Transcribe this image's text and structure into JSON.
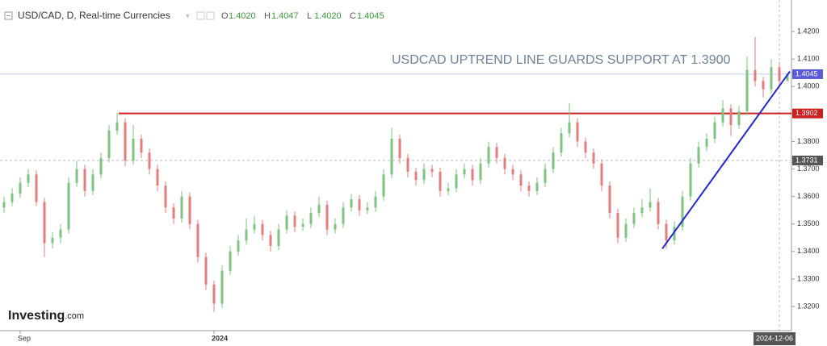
{
  "chart_data": {
    "type": "candlestick",
    "title": "USD/CAD, D, Real-time Currencies",
    "ohlc_header": [
      {
        "key": "O",
        "value": "1.4020"
      },
      {
        "key": "H",
        "value": "1.4047"
      },
      {
        "key": "L",
        "value": "1.4020"
      },
      {
        "key": "C",
        "value": "1.4045"
      }
    ],
    "annotation": "USDCAD UPTREND LINE  GUARDS SUPPORT AT 1.3900",
    "logo": "Investing",
    "logo_suffix": ".com",
    "up_color": "#7cc47f",
    "down_color": "#e57c7c",
    "ylim": [
      1.3112,
      1.43
    ],
    "yticks": [
      {
        "value": 1.32,
        "label": "1.3200"
      },
      {
        "value": 1.33,
        "label": "1.3300"
      },
      {
        "value": 1.34,
        "label": "1.3400"
      },
      {
        "value": 1.35,
        "label": "1.3500"
      },
      {
        "value": 1.36,
        "label": "1.3600"
      },
      {
        "value": 1.37,
        "label": "1.3700"
      },
      {
        "value": 1.38,
        "label": "1.3800"
      },
      {
        "value": 1.39,
        "label": "1.3900"
      },
      {
        "value": 1.4,
        "label": "1.4000"
      },
      {
        "value": 1.41,
        "label": "1.4100"
      },
      {
        "value": 1.42,
        "label": "1.4200"
      }
    ],
    "categories": [
      null,
      null,
      "Sep",
      null,
      null,
      null,
      null,
      null,
      null,
      null,
      null,
      null,
      null,
      null,
      null,
      null,
      null,
      null,
      null,
      null,
      null,
      null,
      null,
      null,
      null,
      null,
      "2024",
      null,
      null,
      null,
      null,
      null,
      null,
      null,
      null,
      null,
      null,
      null,
      null,
      null,
      null,
      null,
      null,
      null,
      null,
      null,
      null,
      null,
      null,
      null,
      null,
      null,
      null,
      null,
      null,
      null,
      null,
      null,
      null,
      null,
      null,
      null,
      null,
      null,
      null,
      null,
      null,
      null,
      null,
      null,
      null,
      null,
      null,
      null,
      null,
      null,
      null,
      null,
      null,
      null,
      null,
      null,
      null,
      null,
      null,
      null,
      null,
      null,
      null,
      null,
      null,
      null,
      null,
      null,
      null,
      null,
      "2024-12-06",
      null
    ],
    "candles": [
      [
        1.356,
        1.36,
        1.354,
        1.358
      ],
      [
        1.358,
        1.363,
        1.3565,
        1.361
      ],
      [
        1.361,
        1.367,
        1.3595,
        1.365
      ],
      [
        1.365,
        1.37,
        1.3635,
        1.368
      ],
      [
        1.368,
        1.3695,
        1.3565,
        1.358
      ],
      [
        1.358,
        1.3595,
        1.338,
        1.343
      ],
      [
        1.343,
        1.347,
        1.341,
        1.345
      ],
      [
        1.345,
        1.35,
        1.343,
        1.348
      ],
      [
        1.348,
        1.367,
        1.3465,
        1.365
      ],
      [
        1.365,
        1.373,
        1.3635,
        1.37
      ],
      [
        1.37,
        1.3715,
        1.36,
        1.362
      ],
      [
        1.362,
        1.37,
        1.3605,
        1.368
      ],
      [
        1.368,
        1.376,
        1.3665,
        1.374
      ],
      [
        1.374,
        1.386,
        1.3725,
        1.384
      ],
      [
        1.384,
        1.3905,
        1.3825,
        1.387
      ],
      [
        1.387,
        1.3885,
        1.371,
        1.373
      ],
      [
        1.373,
        1.386,
        1.3715,
        1.381
      ],
      [
        1.381,
        1.3825,
        1.374,
        1.376
      ],
      [
        1.376,
        1.3775,
        1.368,
        1.37
      ],
      [
        1.37,
        1.3715,
        1.362,
        1.364
      ],
      [
        1.364,
        1.3655,
        1.354,
        1.356
      ],
      [
        1.356,
        1.3575,
        1.35,
        1.352
      ],
      [
        1.352,
        1.362,
        1.3505,
        1.36
      ],
      [
        1.36,
        1.3615,
        1.348,
        1.35
      ],
      [
        1.35,
        1.3515,
        1.336,
        1.338
      ],
      [
        1.338,
        1.3395,
        1.326,
        1.328
      ],
      [
        1.328,
        1.3295,
        1.318,
        1.321
      ],
      [
        1.321,
        1.335,
        1.3195,
        1.333
      ],
      [
        1.333,
        1.342,
        1.3315,
        1.34
      ],
      [
        1.34,
        1.346,
        1.3385,
        1.344
      ],
      [
        1.344,
        1.352,
        1.3425,
        1.348
      ],
      [
        1.348,
        1.353,
        1.3465,
        1.35
      ],
      [
        1.35,
        1.3515,
        1.344,
        1.346
      ],
      [
        1.346,
        1.3475,
        1.34,
        1.342
      ],
      [
        1.342,
        1.35,
        1.3405,
        1.348
      ],
      [
        1.348,
        1.355,
        1.3465,
        1.353
      ],
      [
        1.353,
        1.3545,
        1.347,
        1.349
      ],
      [
        1.349,
        1.352,
        1.3475,
        1.35
      ],
      [
        1.35,
        1.356,
        1.3485,
        1.354
      ],
      [
        1.354,
        1.36,
        1.3525,
        1.357
      ],
      [
        1.357,
        1.3585,
        1.346,
        1.348
      ],
      [
        1.348,
        1.352,
        1.3465,
        1.35
      ],
      [
        1.35,
        1.358,
        1.3485,
        1.356
      ],
      [
        1.356,
        1.361,
        1.3545,
        1.359
      ],
      [
        1.359,
        1.3605,
        1.353,
        1.355
      ],
      [
        1.355,
        1.358,
        1.3535,
        1.356
      ],
      [
        1.356,
        1.362,
        1.3545,
        1.36
      ],
      [
        1.36,
        1.37,
        1.3585,
        1.368
      ],
      [
        1.368,
        1.385,
        1.3665,
        1.381
      ],
      [
        1.381,
        1.3825,
        1.372,
        1.374
      ],
      [
        1.374,
        1.3755,
        1.367,
        1.369
      ],
      [
        1.369,
        1.3705,
        1.364,
        1.366
      ],
      [
        1.366,
        1.372,
        1.3645,
        1.37
      ],
      [
        1.37,
        1.3715,
        1.367,
        1.369
      ],
      [
        1.369,
        1.3705,
        1.36,
        1.362
      ],
      [
        1.362,
        1.365,
        1.3605,
        1.363
      ],
      [
        1.363,
        1.37,
        1.3615,
        1.368
      ],
      [
        1.368,
        1.372,
        1.3665,
        1.37
      ],
      [
        1.37,
        1.3715,
        1.364,
        1.366
      ],
      [
        1.366,
        1.374,
        1.3645,
        1.372
      ],
      [
        1.372,
        1.38,
        1.3705,
        1.378
      ],
      [
        1.378,
        1.3795,
        1.372,
        1.374
      ],
      [
        1.374,
        1.3755,
        1.368,
        1.37
      ],
      [
        1.37,
        1.3715,
        1.366,
        1.368
      ],
      [
        1.368,
        1.3695,
        1.362,
        1.364
      ],
      [
        1.364,
        1.3655,
        1.36,
        1.362
      ],
      [
        1.362,
        1.367,
        1.3605,
        1.365
      ],
      [
        1.365,
        1.372,
        1.3635,
        1.37
      ],
      [
        1.37,
        1.378,
        1.3685,
        1.376
      ],
      [
        1.376,
        1.385,
        1.3745,
        1.383
      ],
      [
        1.383,
        1.394,
        1.3815,
        1.387
      ],
      [
        1.387,
        1.3885,
        1.378,
        1.38
      ],
      [
        1.38,
        1.3815,
        1.374,
        1.376
      ],
      [
        1.376,
        1.3775,
        1.37,
        1.372
      ],
      [
        1.372,
        1.3735,
        1.362,
        1.364
      ],
      [
        1.364,
        1.3655,
        1.352,
        1.354
      ],
      [
        1.354,
        1.3555,
        1.343,
        1.345
      ],
      [
        1.345,
        1.352,
        1.3435,
        1.35
      ],
      [
        1.35,
        1.356,
        1.3485,
        1.354
      ],
      [
        1.354,
        1.359,
        1.3525,
        1.356
      ],
      [
        1.356,
        1.363,
        1.3545,
        1.358
      ],
      [
        1.358,
        1.3595,
        1.348,
        1.35
      ],
      [
        1.35,
        1.3515,
        1.341,
        1.344
      ],
      [
        1.344,
        1.351,
        1.3425,
        1.349
      ],
      [
        1.349,
        1.362,
        1.3475,
        1.36
      ],
      [
        1.36,
        1.374,
        1.3585,
        1.372
      ],
      [
        1.372,
        1.38,
        1.3705,
        1.378
      ],
      [
        1.378,
        1.383,
        1.3765,
        1.381
      ],
      [
        1.381,
        1.389,
        1.3795,
        1.387
      ],
      [
        1.387,
        1.395,
        1.3855,
        1.392
      ],
      [
        1.392,
        1.3935,
        1.382,
        1.386
      ],
      [
        1.386,
        1.393,
        1.3845,
        1.391
      ],
      [
        1.391,
        1.411,
        1.3895,
        1.406
      ],
      [
        1.406,
        1.418,
        1.4,
        1.402
      ],
      [
        1.402,
        1.4035,
        1.396,
        1.399
      ],
      [
        1.399,
        1.41,
        1.3975,
        1.407
      ],
      [
        1.407,
        1.409,
        1.4,
        1.402
      ],
      [
        1.402,
        1.4047,
        1.402,
        1.4045
      ]
    ],
    "levels": [
      {
        "value": 1.4045,
        "label": "1.4045",
        "color": "#5b5bd6",
        "line_color": "#c5cbe6",
        "start": -0.5
      },
      {
        "value": 1.3902,
        "label": "1.3902",
        "color": "#cc1f1f",
        "line_color": "#cc1f1f",
        "start": 14.2
      }
    ],
    "crosshair": {
      "index": 96,
      "value": 1.3731,
      "label": "1.3731"
    },
    "trend_line": {
      "x": [
        81.5,
        97.3
      ],
      "y": [
        1.341,
        1.4055
      ],
      "color": "#2626d9"
    }
  }
}
